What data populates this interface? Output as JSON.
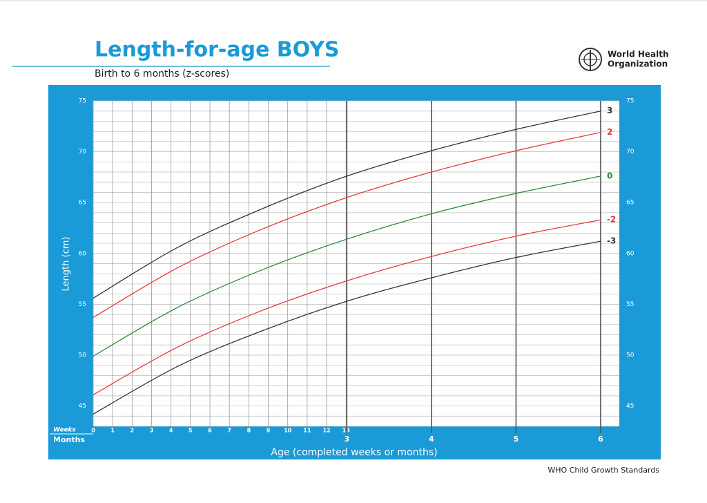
{
  "header": {
    "title": "Length-for-age BOYS",
    "subtitle": "Birth to 6 months (z-scores)",
    "logo_text": [
      "World Health",
      "Organization"
    ]
  },
  "footer": "WHO Child Growth Standards",
  "chart_data": {
    "type": "line",
    "x_label": "Age (completed weeks or months)",
    "y_label": "Length (cm)",
    "x_week_label": "Weeks",
    "x_month_label": "Months",
    "x": [
      0,
      4.35,
      8.7,
      13.04,
      17.39,
      21.74,
      26.09
    ],
    "series": [
      {
        "name": "3",
        "color": "#333333",
        "values": [
          55.6,
          60.6,
          64.4,
          67.6,
          70.1,
          72.2,
          74.0
        ]
      },
      {
        "name": "2",
        "color": "#e8393a",
        "values": [
          53.7,
          58.6,
          62.4,
          65.5,
          68.0,
          70.1,
          71.9
        ]
      },
      {
        "name": "0",
        "color": "#2e8b3a",
        "values": [
          49.9,
          54.7,
          58.4,
          61.4,
          63.9,
          65.9,
          67.6
        ]
      },
      {
        "name": "-2",
        "color": "#e8393a",
        "values": [
          46.1,
          50.8,
          54.4,
          57.3,
          59.7,
          61.7,
          63.3
        ]
      },
      {
        "name": "-3",
        "color": "#333333",
        "values": [
          44.2,
          48.9,
          52.4,
          55.3,
          57.6,
          59.6,
          61.2
        ]
      }
    ],
    "xlim": [
      0,
      27.05
    ],
    "xticks": [
      0,
      1,
      2,
      3,
      4,
      5,
      6,
      7,
      8,
      9,
      10,
      11,
      12,
      13
    ],
    "month_ticks": [
      {
        "value": 13.04,
        "label": "3"
      },
      {
        "value": 17.39,
        "label": "4"
      },
      {
        "value": 21.74,
        "label": "5"
      },
      {
        "value": 26.09,
        "label": "6"
      }
    ],
    "ylim": [
      43,
      75
    ],
    "yticks": [
      45,
      50,
      55,
      60,
      65,
      70,
      75
    ],
    "minor_yticks": [
      43,
      44,
      45,
      46,
      47,
      48,
      49,
      50,
      51,
      52,
      53,
      54,
      55,
      56,
      57,
      58,
      59,
      60,
      61,
      62,
      63,
      64,
      65,
      66,
      67,
      68,
      69,
      70,
      71,
      72,
      73,
      74,
      75
    ],
    "grid": true
  }
}
